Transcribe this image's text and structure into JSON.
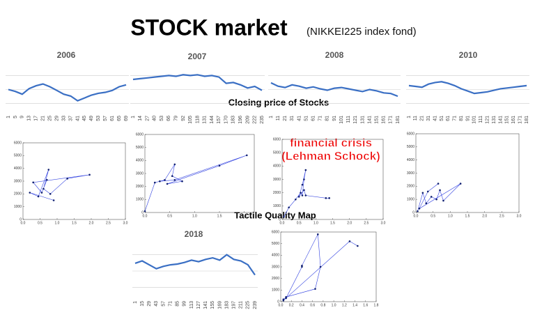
{
  "slide": {
    "title": "STOCK market",
    "subtitle": "(NIKKEI225 index fond)",
    "closing_label": "Closing price of Stocks",
    "tactile_label": "Tactile Quality Map",
    "annotation": [
      "financial crisis",
      "(Lehman Schock)"
    ]
  },
  "chart_data": [
    {
      "type": "line",
      "title": "2006",
      "color": "#3a6fc4",
      "ylim": [
        14000,
        19000
      ],
      "categories": [
        "1",
        "5",
        "9",
        "13",
        "17",
        "21",
        "25",
        "29",
        "33",
        "37",
        "41",
        "45",
        "49",
        "53",
        "57",
        "61",
        "65",
        "69"
      ],
      "values": [
        16500,
        16300,
        16000,
        16600,
        16900,
        17100,
        16800,
        16400,
        16000,
        15800,
        15300,
        15600,
        15900,
        16100,
        16200,
        16400,
        16800,
        17000
      ]
    },
    {
      "type": "line",
      "title": "2007",
      "color": "#3a6fc4",
      "ylim": [
        13000,
        19000
      ],
      "categories": [
        "1",
        "14",
        "27",
        "40",
        "53",
        "66",
        "79",
        "92",
        "105",
        "118",
        "131",
        "144",
        "157",
        "170",
        "183",
        "196",
        "209",
        "222",
        "235"
      ],
      "values": [
        17300,
        17400,
        17500,
        17600,
        17700,
        17800,
        17700,
        17900,
        17800,
        17900,
        17700,
        17800,
        17600,
        16800,
        16900,
        16600,
        16200,
        16400,
        15900
      ]
    },
    {
      "type": "line",
      "title": "2008",
      "color": "#3a6fc4",
      "ylim": [
        9000,
        16000
      ],
      "categories": [
        "1",
        "11",
        "21",
        "31",
        "41",
        "51",
        "61",
        "71",
        "81",
        "91",
        "101",
        "111",
        "121",
        "131",
        "141",
        "151",
        "161",
        "171",
        "181"
      ],
      "values": [
        13500,
        13000,
        12800,
        13200,
        13000,
        12700,
        12900,
        12600,
        12400,
        12700,
        12800,
        12600,
        12400,
        12200,
        12500,
        12300,
        12000,
        11900,
        11500
      ]
    },
    {
      "type": "line",
      "title": "2010",
      "color": "#3a6fc4",
      "ylim": [
        7000,
        13000
      ],
      "categories": [
        "1",
        "11",
        "21",
        "31",
        "41",
        "51",
        "61",
        "71",
        "81",
        "91",
        "101",
        "111",
        "121",
        "131",
        "141",
        "151",
        "161",
        "171",
        "181"
      ],
      "values": [
        10500,
        10400,
        10300,
        10700,
        10900,
        11000,
        10800,
        10500,
        10100,
        9800,
        9500,
        9600,
        9700,
        9900,
        10100,
        10200,
        10300,
        10400,
        10500
      ]
    },
    {
      "type": "line",
      "title": "2018",
      "color": "#3a6fc4",
      "ylim": [
        18000,
        25000
      ],
      "categories": [
        "1",
        "15",
        "29",
        "43",
        "57",
        "71",
        "85",
        "99",
        "113",
        "127",
        "141",
        "155",
        "169",
        "183",
        "197",
        "211",
        "225",
        "239"
      ],
      "values": [
        22500,
        22800,
        22300,
        21800,
        22100,
        22300,
        22400,
        22600,
        22900,
        22700,
        23000,
        23200,
        22900,
        23600,
        23000,
        22800,
        22300,
        21000
      ]
    },
    {
      "type": "line",
      "color": "#3040e0",
      "xlim": [
        0,
        3
      ],
      "ylim": [
        0,
        6000
      ],
      "xticks": [
        {
          "value": 0,
          "label": "0.0"
        },
        {
          "value": 0.5,
          "label": "0.5"
        },
        {
          "value": 1,
          "label": "1.0"
        },
        {
          "value": 1.5,
          "label": "1.5"
        },
        {
          "value": 2,
          "label": "2.0"
        },
        {
          "value": 2.5,
          "label": "2.5"
        },
        {
          "value": 3,
          "label": "3.0"
        }
      ],
      "yticks": [
        0,
        1000,
        2000,
        3000,
        4000,
        5000,
        6000
      ],
      "x": [
        0.9,
        0.2,
        0.45,
        0.75,
        0.6,
        0.8,
        1.3,
        1.95,
        0.3,
        0.55,
        0.7
      ],
      "values": [
        1500,
        2100,
        1800,
        3900,
        2400,
        2000,
        3200,
        3500,
        2900,
        2100,
        3100
      ]
    },
    {
      "type": "line",
      "color": "#3040e0",
      "xlim": [
        0,
        2.2
      ],
      "ylim": [
        0,
        6000
      ],
      "xticks": [
        {
          "value": 0,
          "label": "0.0"
        },
        {
          "value": 0.5,
          "label": "0.5"
        },
        {
          "value": 1,
          "label": "1.0"
        },
        {
          "value": 1.5,
          "label": "1.5"
        },
        {
          "value": 2,
          "label": "2.0"
        }
      ],
      "yticks": [
        0,
        1000,
        2000,
        3000,
        4000,
        5000,
        6000
      ],
      "x": [
        0.0,
        0.2,
        0.4,
        0.6,
        0.55,
        0.75,
        0.45,
        1.5,
        2.05,
        0.6,
        0.3
      ],
      "values": [
        100,
        2300,
        2500,
        3700,
        2800,
        2400,
        2200,
        3600,
        4400,
        2500,
        2400
      ]
    },
    {
      "type": "line",
      "color": "#3040e0",
      "xlim": [
        0,
        3
      ],
      "ylim": [
        0,
        6000
      ],
      "xticks": [
        {
          "value": 0,
          "label": "0.0"
        },
        {
          "value": 0.5,
          "label": "0.5"
        },
        {
          "value": 1,
          "label": "1.0"
        },
        {
          "value": 1.5,
          "label": "1.5"
        },
        {
          "value": 2,
          "label": "2.0"
        },
        {
          "value": 2.5,
          "label": "2.5"
        },
        {
          "value": 3,
          "label": "3.0"
        }
      ],
      "yticks": [
        0,
        1000,
        2000,
        3000,
        4000,
        5000,
        6000
      ],
      "x": [
        0.05,
        0.2,
        0.4,
        0.55,
        0.6,
        0.65,
        0.7,
        0.6,
        0.5,
        0.65,
        0.7,
        1.3,
        1.4
      ],
      "values": [
        200,
        900,
        1500,
        2000,
        1800,
        3000,
        3700,
        2600,
        1700,
        2200,
        1800,
        1600,
        1600
      ]
    },
    {
      "type": "line",
      "color": "#3040e0",
      "xlim": [
        0,
        3
      ],
      "ylim": [
        0,
        6000
      ],
      "xticks": [
        {
          "value": 0,
          "label": "0.0"
        },
        {
          "value": 0.5,
          "label": "0.5"
        },
        {
          "value": 1,
          "label": "1.0"
        },
        {
          "value": 1.5,
          "label": "1.5"
        },
        {
          "value": 2,
          "label": "2.0"
        },
        {
          "value": 2.5,
          "label": "2.5"
        },
        {
          "value": 3,
          "label": "3.0"
        }
      ],
      "yticks": [
        0,
        1000,
        2000,
        3000,
        4000,
        5000,
        6000
      ],
      "x": [
        0.05,
        0.2,
        0.3,
        0.45,
        0.6,
        0.7,
        0.8,
        1.3,
        0.1,
        0.35,
        0.65
      ],
      "values": [
        100,
        1500,
        700,
        1200,
        1000,
        1700,
        900,
        2200,
        300,
        1600,
        2200
      ]
    },
    {
      "type": "line",
      "color": "#3040e0",
      "xlim": [
        0,
        1.8
      ],
      "ylim": [
        0,
        6000
      ],
      "xticks": [
        {
          "value": 0,
          "label": "0.0"
        },
        {
          "value": 0.2,
          "label": "0.2"
        },
        {
          "value": 0.4,
          "label": "0.4"
        },
        {
          "value": 0.6,
          "label": "0.6"
        },
        {
          "value": 0.8,
          "label": "0.8"
        },
        {
          "value": 1,
          "label": "1.0"
        },
        {
          "value": 1.2,
          "label": "1.2"
        },
        {
          "value": 1.4,
          "label": "1.4"
        },
        {
          "value": 1.6,
          "label": "1.6"
        },
        {
          "value": 1.8,
          "label": "1.8"
        }
      ],
      "yticks": [
        0,
        1000,
        2000,
        3000,
        4000,
        5000,
        6000
      ],
      "x": [
        0.05,
        0.1,
        0.4,
        0.4,
        0.7,
        0.75,
        0.65,
        0.1,
        0.05,
        1.3,
        1.45
      ],
      "values": [
        200,
        300,
        3000,
        3100,
        5800,
        3000,
        1100,
        400,
        100,
        5200,
        4800
      ]
    }
  ]
}
